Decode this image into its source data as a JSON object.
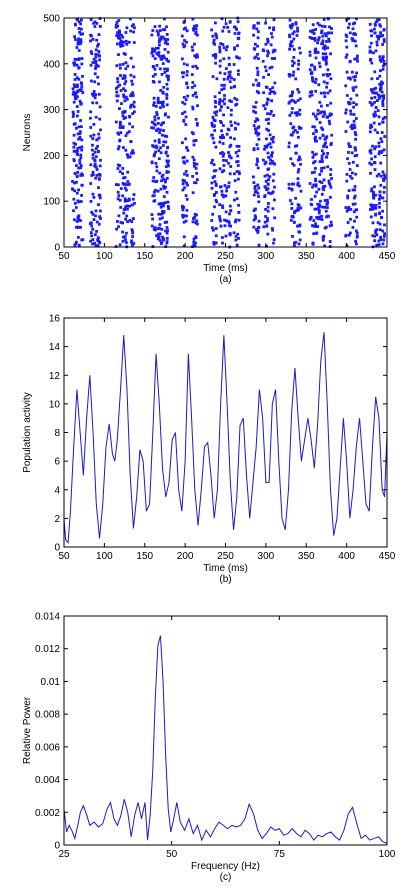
{
  "chart_data": [
    {
      "type": "scatter",
      "panel_label": "(a)",
      "xlabel": "Time (ms)",
      "ylabel": "Neurons",
      "xlim": [
        50,
        450
      ],
      "ylim": [
        0,
        500
      ],
      "xticks": [
        50,
        100,
        150,
        200,
        250,
        300,
        350,
        400,
        450
      ],
      "yticks": [
        0,
        100,
        200,
        300,
        400,
        500
      ],
      "marker_color": "#1a1aff",
      "burst_times_ms": [
        64,
        70,
        86,
        92,
        118,
        126,
        134,
        162,
        170,
        176,
        200,
        212,
        236,
        246,
        254,
        264,
        288,
        300,
        308,
        332,
        340,
        358,
        364,
        372,
        378,
        402,
        410,
        432,
        438,
        444
      ],
      "grid": false
    },
    {
      "type": "line",
      "panel_label": "(b)",
      "xlabel": "Time (ms)",
      "ylabel": "Population activity",
      "xlim": [
        50,
        450
      ],
      "ylim": [
        0,
        16
      ],
      "xticks": [
        50,
        100,
        150,
        200,
        250,
        300,
        350,
        400,
        450
      ],
      "yticks": [
        0,
        2,
        4,
        6,
        8,
        10,
        12,
        14,
        16
      ],
      "line_color": "#1a1acc",
      "x": [
        50,
        52,
        55,
        58,
        62,
        66,
        70,
        74,
        78,
        82,
        86,
        90,
        94,
        98,
        102,
        106,
        110,
        113,
        116,
        120,
        124,
        128,
        132,
        136,
        140,
        144,
        148,
        152,
        156,
        160,
        164,
        168,
        172,
        176,
        180,
        184,
        188,
        192,
        196,
        200,
        204,
        208,
        212,
        216,
        220,
        224,
        228,
        232,
        236,
        240,
        244,
        248,
        252,
        256,
        260,
        264,
        268,
        272,
        276,
        280,
        284,
        288,
        292,
        296,
        300,
        304,
        308,
        312,
        316,
        320,
        324,
        328,
        332,
        336,
        340,
        344,
        348,
        352,
        356,
        360,
        364,
        368,
        372,
        376,
        380,
        384,
        388,
        392,
        396,
        400,
        404,
        408,
        412,
        416,
        420,
        424,
        428,
        432,
        436,
        440,
        444,
        447,
        450
      ],
      "y": [
        2,
        0.5,
        0.3,
        2.5,
        7,
        11,
        8,
        5,
        9,
        12,
        8,
        3,
        0.6,
        3,
        7,
        8.6,
        6.5,
        6,
        7.5,
        11,
        14.8,
        11,
        5,
        1.3,
        3.5,
        6.8,
        6,
        2.5,
        3,
        8,
        13.5,
        10,
        5.5,
        3.5,
        4.5,
        7.5,
        8,
        4,
        2.5,
        6,
        13.5,
        9,
        4,
        1.5,
        4,
        7,
        7.3,
        5,
        2,
        4,
        10,
        14.8,
        10,
        4.5,
        1.2,
        3.5,
        8.5,
        9,
        5,
        2,
        4.5,
        7,
        11,
        9,
        4.5,
        4.5,
        10,
        11,
        6,
        2,
        1.2,
        4,
        9.5,
        12.5,
        9,
        6,
        7.5,
        9,
        7.5,
        5.5,
        8.5,
        13,
        15,
        10,
        4,
        0.8,
        2,
        5.5,
        9,
        6,
        2,
        4,
        7,
        9,
        6,
        3,
        2.5,
        7,
        10.5,
        9,
        4,
        3.5,
        8
      ]
    },
    {
      "type": "line",
      "panel_label": "(c)",
      "xlabel": "Frequency (Hz)",
      "ylabel": "Relative Power",
      "xlim": [
        25,
        100
      ],
      "ylim": [
        0,
        0.014
      ],
      "xticks": [
        25,
        50,
        75,
        100
      ],
      "yticks": [
        0,
        0.002,
        0.004,
        0.006,
        0.008,
        0.01,
        0.012,
        0.014
      ],
      "line_color": "#1a1acc",
      "x": [
        25,
        25.6,
        26.2,
        26.8,
        27.5,
        28.2,
        28.8,
        29.5,
        30.2,
        31,
        32,
        33,
        34,
        35,
        35.8,
        36.6,
        37.4,
        38.2,
        39,
        39.8,
        40.6,
        41.4,
        42.2,
        43,
        43.8,
        44.4,
        45,
        45.6,
        46.2,
        46.8,
        47.4,
        48,
        48.6,
        49.2,
        49.8,
        50.4,
        51.2,
        52,
        53,
        54,
        55,
        56,
        57,
        58,
        59,
        60,
        61,
        62,
        63,
        64,
        65,
        66,
        67,
        68,
        69,
        70,
        71,
        72,
        73,
        74,
        75,
        76,
        77,
        78,
        79,
        80,
        81,
        82,
        83,
        84,
        85,
        86,
        87,
        88,
        89,
        90,
        91,
        92,
        93,
        94,
        95,
        96,
        97,
        98,
        99,
        100
      ],
      "y": [
        0.0022,
        0.0008,
        0.0012,
        0.0009,
        0.0004,
        0.0012,
        0.002,
        0.0024,
        0.0019,
        0.0012,
        0.0014,
        0.0011,
        0.0013,
        0.0022,
        0.0026,
        0.0016,
        0.0012,
        0.0018,
        0.0028,
        0.002,
        0.0005,
        0.0018,
        0.0026,
        0.0016,
        0.0026,
        0.0003,
        0.0018,
        0.0045,
        0.009,
        0.0122,
        0.0128,
        0.01,
        0.0055,
        0.0022,
        0.0008,
        0.0015,
        0.0026,
        0.0014,
        0.0009,
        0.0016,
        0.0007,
        0.0012,
        0.0003,
        0.0009,
        0.0005,
        0.001,
        0.0014,
        0.0012,
        0.001,
        0.0012,
        0.0011,
        0.0012,
        0.0016,
        0.0025,
        0.0019,
        0.0009,
        0.0004,
        0.0007,
        0.0011,
        0.0009,
        0.001,
        0.0006,
        0.0007,
        0.001,
        0.0007,
        0.0005,
        0.0009,
        0.0007,
        0.0003,
        0.0006,
        0.0005,
        0.0007,
        0.0008,
        0.0005,
        0.0003,
        0.0009,
        0.0019,
        0.0023,
        0.0013,
        0.0004,
        0.0006,
        0.0003,
        0.0004,
        0.0005,
        0.0002,
        0.0001
      ]
    }
  ]
}
